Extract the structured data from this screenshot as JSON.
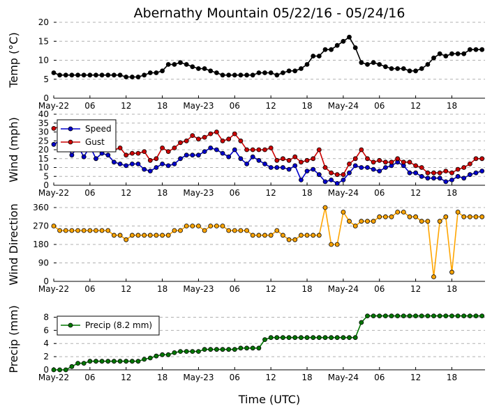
{
  "title": "Abernathy Mountain 05/22/16 - 05/24/16",
  "xlabel": "Time (UTC)",
  "xtick_labels": [
    "May-22",
    "06",
    "12",
    "18",
    "May-23",
    "06",
    "12",
    "18",
    "May-24",
    "06",
    "12",
    "18"
  ],
  "colors": {
    "temp": "#000000",
    "speed": "#0000cc",
    "gust": "#cc0000",
    "dir": "#ffa500",
    "precip": "#007700"
  },
  "chart_data": [
    {
      "type": "line",
      "ylabel": "Temp (°C)",
      "ylim": [
        0,
        20
      ],
      "yticks": [
        0,
        5,
        10,
        15,
        20
      ],
      "x_hours": [
        0,
        1,
        2,
        3,
        4,
        5,
        6,
        7,
        8,
        9,
        10,
        11,
        12,
        13,
        14,
        15,
        16,
        17,
        18,
        19,
        20,
        21,
        22,
        23,
        24,
        25,
        26,
        27,
        28,
        29,
        30,
        31,
        32,
        33,
        34,
        35,
        36,
        37,
        38,
        39,
        40,
        41,
        42,
        43,
        44,
        45,
        46,
        47,
        48,
        49,
        50,
        51,
        52,
        53,
        54,
        55,
        56,
        57,
        58,
        59,
        60,
        61,
        62,
        63,
        64,
        65,
        66,
        67,
        68,
        69,
        70,
        71
      ],
      "series": [
        {
          "key": "temp",
          "values": [
            6.7,
            6.1,
            6.1,
            6.1,
            6.1,
            6.1,
            6.1,
            6.1,
            6.1,
            6.1,
            6.1,
            6.1,
            5.6,
            5.6,
            5.6,
            6.1,
            6.7,
            6.7,
            7.2,
            8.9,
            8.9,
            9.4,
            8.9,
            8.3,
            7.8,
            7.8,
            7.2,
            6.7,
            6.1,
            6.1,
            6.1,
            6.1,
            6.1,
            6.1,
            6.7,
            6.7,
            6.7,
            6.1,
            6.7,
            7.2,
            7.2,
            7.8,
            8.9,
            11.1,
            11.1,
            12.8,
            12.8,
            13.9,
            15.0,
            16.1,
            13.3,
            9.4,
            8.9,
            9.4,
            8.9,
            8.3,
            7.8,
            7.8,
            7.8,
            7.2,
            7.2,
            7.8,
            8.9,
            10.6,
            11.7,
            11.1,
            11.7,
            11.7,
            11.7,
            12.8,
            12.8,
            12.8
          ]
        }
      ]
    },
    {
      "type": "line",
      "ylabel": "Wind (mph)",
      "ylim": [
        0,
        40
      ],
      "yticks": [
        0,
        5,
        10,
        15,
        20,
        25,
        30,
        35,
        40
      ],
      "legend": "upper-left",
      "x_hours": [
        0,
        1,
        2,
        3,
        4,
        5,
        6,
        7,
        8,
        9,
        10,
        11,
        12,
        13,
        14,
        15,
        16,
        17,
        18,
        19,
        20,
        21,
        22,
        23,
        24,
        25,
        26,
        27,
        28,
        29,
        30,
        31,
        32,
        33,
        34,
        35,
        36,
        37,
        38,
        39,
        40,
        41,
        42,
        43,
        44,
        45,
        46,
        47,
        48,
        49,
        50,
        51,
        52,
        53,
        54,
        55,
        56,
        57,
        58,
        59,
        60,
        61,
        62,
        63,
        64,
        65,
        66,
        67,
        68,
        69,
        70,
        71
      ],
      "series": [
        {
          "key": "speed",
          "name": "Speed",
          "values": [
            23,
            25,
            24,
            17,
            22,
            16,
            22,
            15,
            18,
            17,
            13,
            12,
            11,
            12,
            12,
            9,
            8,
            10,
            12,
            11,
            12,
            15,
            17,
            17,
            17,
            19,
            21,
            20,
            18,
            16,
            20,
            15,
            12,
            16,
            14,
            12,
            10,
            10,
            10,
            9,
            11,
            3,
            8,
            9,
            6,
            2,
            3,
            1,
            3,
            7,
            11,
            10,
            10,
            9,
            8,
            10,
            11,
            13,
            11,
            7,
            7,
            5,
            4,
            4,
            4,
            2,
            3,
            5,
            4,
            6,
            7,
            8
          ]
        },
        {
          "key": "gust",
          "name": "Gust",
          "values": [
            32,
            33,
            null,
            null,
            null,
            null,
            null,
            null,
            null,
            21,
            20,
            21,
            17,
            18,
            18,
            19,
            14,
            15,
            21,
            19,
            21,
            24,
            25,
            28,
            26,
            27,
            29,
            30,
            25,
            26,
            29,
            25,
            20,
            20,
            20,
            20,
            21,
            14,
            15,
            14,
            16,
            13,
            14,
            15,
            20,
            10,
            7,
            6,
            6,
            12,
            15,
            20,
            15,
            13,
            14,
            13,
            13,
            15,
            13,
            13,
            11,
            10,
            7,
            7,
            7,
            8,
            7,
            9,
            10,
            12,
            15,
            15
          ]
        }
      ]
    },
    {
      "type": "line",
      "ylabel": "Wind Direction",
      "ylim": [
        0,
        360
      ],
      "yticks": [
        0,
        90,
        180,
        270,
        360
      ],
      "x_hours": [
        0,
        1,
        2,
        3,
        4,
        5,
        6,
        7,
        8,
        9,
        10,
        11,
        12,
        13,
        14,
        15,
        16,
        17,
        18,
        19,
        20,
        21,
        22,
        23,
        24,
        25,
        26,
        27,
        28,
        29,
        30,
        31,
        32,
        33,
        34,
        35,
        36,
        37,
        38,
        39,
        40,
        41,
        42,
        43,
        44,
        45,
        46,
        47,
        48,
        49,
        50,
        51,
        52,
        53,
        54,
        55,
        56,
        57,
        58,
        59,
        60,
        61,
        62,
        63,
        64,
        65,
        66,
        67,
        68,
        69,
        70,
        71
      ],
      "series": [
        {
          "key": "dir",
          "values": [
            270,
            248,
            248,
            248,
            248,
            248,
            248,
            248,
            248,
            248,
            225,
            225,
            203,
            225,
            225,
            225,
            225,
            225,
            225,
            225,
            248,
            248,
            270,
            270,
            270,
            248,
            270,
            270,
            270,
            248,
            248,
            248,
            248,
            225,
            225,
            225,
            225,
            248,
            225,
            203,
            203,
            225,
            225,
            225,
            225,
            360,
            180,
            180,
            338,
            293,
            270,
            293,
            293,
            293,
            315,
            315,
            315,
            338,
            338,
            315,
            315,
            293,
            293,
            22,
            293,
            315,
            45,
            338,
            315,
            315,
            315,
            315
          ]
        }
      ]
    },
    {
      "type": "line",
      "ylabel": "Precip (mm)",
      "ylim": [
        0,
        9
      ],
      "yticks": [
        0,
        2,
        4,
        6,
        8
      ],
      "legend": "upper-left",
      "x_hours": [
        0,
        1,
        2,
        3,
        4,
        5,
        6,
        7,
        8,
        9,
        10,
        11,
        12,
        13,
        14,
        15,
        16,
        17,
        18,
        19,
        20,
        21,
        22,
        23,
        24,
        25,
        26,
        27,
        28,
        29,
        30,
        31,
        32,
        33,
        34,
        35,
        36,
        37,
        38,
        39,
        40,
        41,
        42,
        43,
        44,
        45,
        46,
        47,
        48,
        49,
        50,
        51,
        52,
        53,
        54,
        55,
        56,
        57,
        58,
        59,
        60,
        61,
        62,
        63,
        64,
        65,
        66,
        67,
        68,
        69,
        70,
        71
      ],
      "series": [
        {
          "key": "precip",
          "name": "Precip (8.2 mm)",
          "values": [
            0,
            0,
            0,
            0.5,
            1.0,
            1.0,
            1.3,
            1.3,
            1.3,
            1.3,
            1.3,
            1.3,
            1.3,
            1.3,
            1.3,
            1.6,
            1.8,
            2.1,
            2.3,
            2.3,
            2.6,
            2.8,
            2.8,
            2.8,
            2.8,
            3.1,
            3.1,
            3.1,
            3.1,
            3.1,
            3.1,
            3.3,
            3.3,
            3.3,
            3.3,
            4.6,
            4.9,
            4.9,
            4.9,
            4.9,
            4.9,
            4.9,
            4.9,
            4.9,
            4.9,
            4.9,
            4.9,
            4.9,
            4.9,
            4.9,
            4.9,
            7.2,
            8.2,
            8.2,
            8.2,
            8.2,
            8.2,
            8.2,
            8.2,
            8.2,
            8.2,
            8.2,
            8.2,
            8.2,
            8.2,
            8.2,
            8.2,
            8.2,
            8.2,
            8.2,
            8.2,
            8.2
          ]
        }
      ]
    }
  ]
}
